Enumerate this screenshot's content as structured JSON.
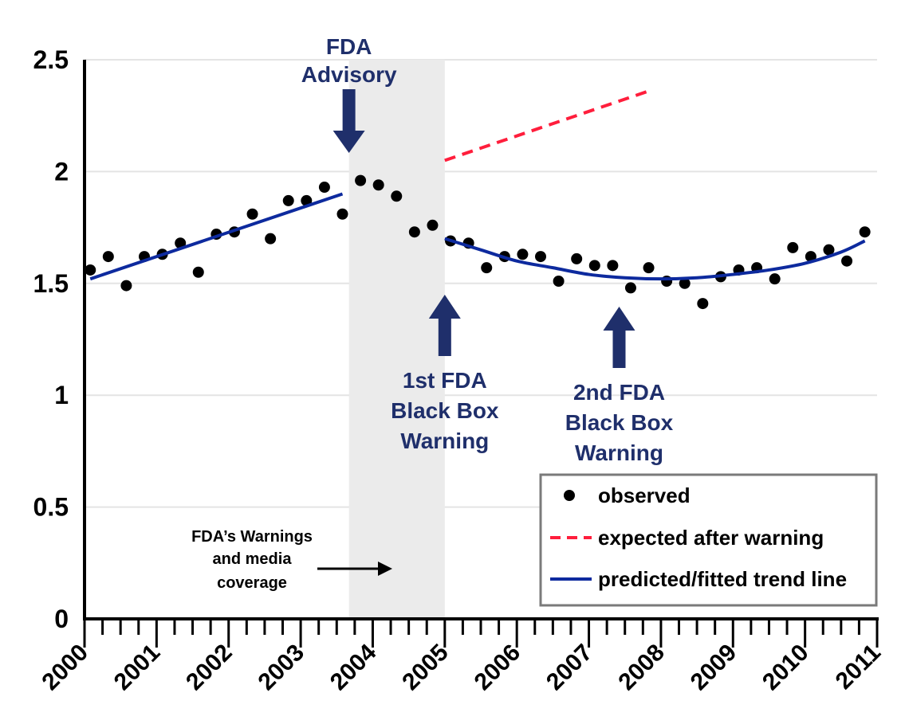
{
  "chart_data": {
    "type": "scatter",
    "xlim": [
      2000,
      2011
    ],
    "ylim": [
      0,
      2.5
    ],
    "x_ticks": [
      "2000",
      "2001",
      "2002",
      "2003",
      "2004",
      "2005",
      "2006",
      "2007",
      "2008",
      "2009",
      "2010",
      "2011"
    ],
    "y_ticks": [
      "0",
      "0.5",
      "1",
      "1.5",
      "2",
      "2.5"
    ],
    "grid": "horizontal",
    "shaded_region": {
      "x": [
        2003.67,
        2005.0
      ],
      "label_lines": [
        "FDA’s Warnings",
        "and media",
        "coverage"
      ]
    },
    "series": [
      {
        "name": "observed",
        "kind": "points",
        "color": "#000000",
        "x": [
          2000.08,
          2000.33,
          2000.58,
          2000.83,
          2001.08,
          2001.33,
          2001.58,
          2001.83,
          2002.08,
          2002.33,
          2002.58,
          2002.83,
          2003.08,
          2003.33,
          2003.58,
          2003.83,
          2004.08,
          2004.33,
          2004.58,
          2004.83,
          2005.08,
          2005.33,
          2005.58,
          2005.83,
          2006.08,
          2006.33,
          2006.58,
          2006.83,
          2007.08,
          2007.33,
          2007.58,
          2007.83,
          2008.08,
          2008.33,
          2008.58,
          2008.83,
          2009.08,
          2009.33,
          2009.58,
          2009.83,
          2010.08,
          2010.33,
          2010.58,
          2010.83
        ],
        "y": [
          1.56,
          1.62,
          1.49,
          1.62,
          1.63,
          1.68,
          1.55,
          1.72,
          1.73,
          1.81,
          1.7,
          1.87,
          1.87,
          1.93,
          1.81,
          1.96,
          1.94,
          1.89,
          1.73,
          1.76,
          1.69,
          1.68,
          1.57,
          1.62,
          1.63,
          1.62,
          1.51,
          1.61,
          1.58,
          1.58,
          1.48,
          1.57,
          1.51,
          1.5,
          1.41,
          1.53,
          1.56,
          1.57,
          1.52,
          1.66,
          1.62,
          1.65,
          1.6,
          1.73
        ]
      },
      {
        "name": "expected after warning",
        "kind": "dashed-line",
        "color": "#ff1e3c",
        "x": [
          2005.0,
          2007.83
        ],
        "y": [
          2.05,
          2.36
        ]
      },
      {
        "name": "predicted/fitted trend line",
        "kind": "line",
        "color": "#0d2a9e",
        "segments": [
          {
            "x": [
              2000.08,
              2003.58
            ],
            "y": [
              1.52,
              1.9
            ]
          },
          {
            "x": [
              2005.0,
              2005.5,
              2006.0,
              2006.5,
              2007.0,
              2007.5,
              2008.0,
              2008.5,
              2009.0,
              2009.5,
              2010.0,
              2010.5,
              2010.83
            ],
            "y": [
              1.7,
              1.65,
              1.6,
              1.57,
              1.54,
              1.525,
              1.52,
              1.525,
              1.54,
              1.56,
              1.59,
              1.64,
              1.69
            ]
          }
        ]
      }
    ],
    "annotations": [
      {
        "id": "fda-advisory",
        "lines": [
          "FDA",
          "Advisory"
        ],
        "arrow": "down",
        "x": 2003.67
      },
      {
        "id": "first-black-box",
        "lines": [
          "1st FDA",
          "Black Box",
          "Warning"
        ],
        "arrow": "up",
        "x": 2005.0
      },
      {
        "id": "second-black-box",
        "lines": [
          "2nd FDA",
          "Black Box",
          "Warning"
        ],
        "arrow": "up",
        "x": 2007.42
      }
    ],
    "legend": {
      "placement": "bottom-right",
      "items": [
        "observed",
        "expected after warning",
        "predicted/fitted trend line"
      ]
    }
  }
}
